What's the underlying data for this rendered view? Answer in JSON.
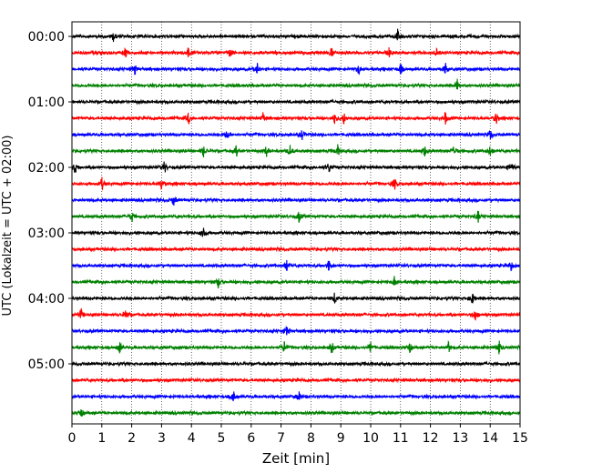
{
  "chart_data": {
    "type": "line",
    "title": "",
    "xlabel": "Zeit  [min]",
    "ylabel": "UTC (Lokalzeit = UTC + 02:00)",
    "xlim": [
      0,
      15
    ],
    "x_ticks": [
      "0",
      "1",
      "2",
      "3",
      "4",
      "5",
      "6",
      "7",
      "8",
      "9",
      "10",
      "11",
      "12",
      "13",
      "14",
      "15"
    ],
    "y_ticks": [
      "00:00",
      "01:00",
      "02:00",
      "03:00",
      "04:00",
      "05:00"
    ],
    "grid": "vertical dotted at each minute",
    "trace_interval_min": 15,
    "traces_start": "00:00",
    "trace_count": 24,
    "colors": [
      "#000000",
      "#ff0000",
      "#0000ff",
      "#008000"
    ],
    "traces": [
      {
        "start": "00:00",
        "color": "#000000",
        "events": [
          1.4,
          10.9
        ]
      },
      {
        "start": "00:15",
        "color": "#ff0000",
        "events": [
          1.8,
          3.9,
          5.3,
          8.7,
          10.6,
          12.2
        ]
      },
      {
        "start": "00:30",
        "color": "#0000ff",
        "events": [
          2.1,
          6.2,
          9.6,
          11.0,
          12.5
        ]
      },
      {
        "start": "00:45",
        "color": "#008000",
        "events": [
          12.9
        ]
      },
      {
        "start": "01:00",
        "color": "#000000",
        "events": []
      },
      {
        "start": "01:15",
        "color": "#ff0000",
        "events": [
          3.9,
          6.4,
          8.8,
          9.1,
          12.5,
          14.2
        ]
      },
      {
        "start": "01:30",
        "color": "#0000ff",
        "events": [
          5.2,
          7.7,
          14.0
        ]
      },
      {
        "start": "01:45",
        "color": "#008000",
        "events": [
          4.4,
          5.5,
          6.5,
          7.3,
          8.9,
          11.8,
          12.8,
          14.0
        ]
      },
      {
        "start": "02:00",
        "color": "#000000",
        "events": [
          0.1,
          3.1,
          8.6,
          14.7
        ]
      },
      {
        "start": "02:15",
        "color": "#ff0000",
        "events": [
          1.0,
          3.0,
          10.8
        ]
      },
      {
        "start": "02:30",
        "color": "#0000ff",
        "events": [
          3.4
        ]
      },
      {
        "start": "02:45",
        "color": "#008000",
        "events": [
          2.0,
          7.6,
          13.6
        ]
      },
      {
        "start": "03:00",
        "color": "#000000",
        "events": [
          4.4
        ]
      },
      {
        "start": "03:15",
        "color": "#ff0000",
        "events": []
      },
      {
        "start": "03:30",
        "color": "#0000ff",
        "events": [
          7.2,
          8.6,
          14.7
        ]
      },
      {
        "start": "03:45",
        "color": "#008000",
        "events": [
          4.9,
          10.8
        ]
      },
      {
        "start": "04:00",
        "color": "#000000",
        "events": [
          8.8,
          13.4
        ]
      },
      {
        "start": "04:15",
        "color": "#ff0000",
        "events": [
          0.3,
          1.8,
          13.5
        ]
      },
      {
        "start": "04:30",
        "color": "#0000ff",
        "events": [
          7.2
        ]
      },
      {
        "start": "04:45",
        "color": "#008000",
        "events": [
          1.6,
          7.1,
          8.7,
          10.0,
          11.3,
          12.6,
          14.3
        ]
      },
      {
        "start": "05:00",
        "color": "#000000",
        "events": []
      },
      {
        "start": "05:15",
        "color": "#ff0000",
        "events": []
      },
      {
        "start": "05:30",
        "color": "#0000ff",
        "events": [
          5.4,
          7.6
        ]
      },
      {
        "start": "05:45",
        "color": "#008000",
        "events": [
          0.3
        ]
      }
    ]
  }
}
